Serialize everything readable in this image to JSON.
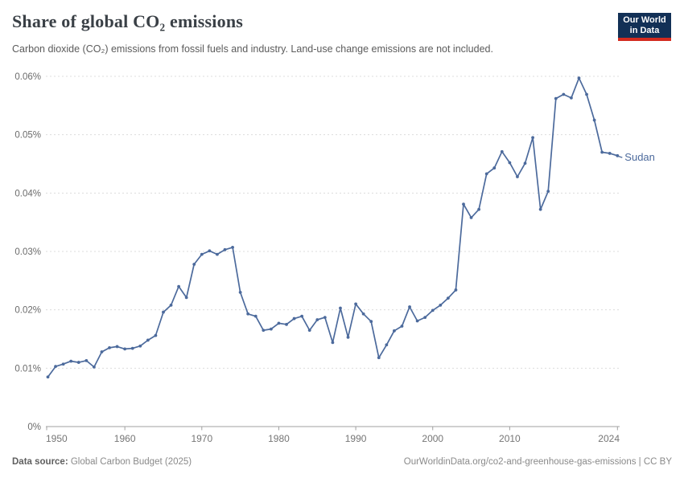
{
  "header": {
    "title": "Share of global CO₂ emissions",
    "subtitle": "Carbon dioxide (CO₂) emissions from fossil fuels and industry. Land-use change emissions are not included.",
    "logo_line1": "Our World",
    "logo_line2": "in Data"
  },
  "footer": {
    "source_label": "Data source:",
    "source_value": " Global Carbon Budget (2025)",
    "link": "OurWorldinData.org/co2-and-greenhouse-gas-emissions | CC BY"
  },
  "colors": {
    "line": "#4c6a9c",
    "entity_label": "#4c6a9c",
    "grid": "#dcdcdc",
    "axis": "#a0a0a0",
    "y_tick_text": "#6b6b6b",
    "x_tick_text": "#757575",
    "logo_bg": "#123056",
    "logo_bar": "#d32a1e"
  },
  "chart_data": {
    "type": "line",
    "title": "Share of global CO₂ emissions",
    "subtitle": "Carbon dioxide (CO₂) emissions from fossil fuels and industry. Land-use change emissions are not included.",
    "unit": "%",
    "ylim": [
      0,
      0.06
    ],
    "grid": "horizontal-dashed",
    "legend_position": "line-end-label",
    "yticks": [
      {
        "value": 0,
        "label": "0%"
      },
      {
        "value": 0.01,
        "label": "0.01%"
      },
      {
        "value": 0.02,
        "label": "0.02%"
      },
      {
        "value": 0.03,
        "label": "0.03%"
      },
      {
        "value": 0.04,
        "label": "0.04%"
      },
      {
        "value": 0.05,
        "label": "0.05%"
      },
      {
        "value": 0.06,
        "label": "0.06%"
      }
    ],
    "xticks": [
      {
        "year": 1950,
        "label": "1950",
        "align": "start"
      },
      {
        "year": 1960,
        "label": "1960",
        "align": "middle"
      },
      {
        "year": 1970,
        "label": "1970",
        "align": "middle"
      },
      {
        "year": 1980,
        "label": "1980",
        "align": "middle"
      },
      {
        "year": 1990,
        "label": "1990",
        "align": "middle"
      },
      {
        "year": 2000,
        "label": "2000",
        "align": "middle"
      },
      {
        "year": 2010,
        "label": "2010",
        "align": "middle"
      },
      {
        "year": 2024,
        "label": "2024",
        "align": "end"
      }
    ],
    "series": [
      {
        "name": "Sudan",
        "color": "#4c6a9c",
        "x": [
          1950,
          1951,
          1952,
          1953,
          1954,
          1955,
          1956,
          1957,
          1958,
          1959,
          1960,
          1961,
          1962,
          1963,
          1964,
          1965,
          1966,
          1967,
          1968,
          1969,
          1970,
          1971,
          1972,
          1973,
          1974,
          1975,
          1976,
          1977,
          1978,
          1979,
          1980,
          1981,
          1982,
          1983,
          1984,
          1985,
          1986,
          1987,
          1988,
          1989,
          1990,
          1991,
          1992,
          1993,
          1994,
          1995,
          1996,
          1997,
          1998,
          1999,
          2000,
          2001,
          2002,
          2003,
          2004,
          2005,
          2006,
          2007,
          2008,
          2009,
          2010,
          2011,
          2012,
          2013,
          2014,
          2015,
          2016,
          2017,
          2018,
          2019,
          2020,
          2021,
          2022,
          2023,
          2024
        ],
        "values": [
          0.0085,
          0.0103,
          0.0107,
          0.0112,
          0.011,
          0.0113,
          0.0102,
          0.0128,
          0.0135,
          0.0137,
          0.0133,
          0.0134,
          0.0138,
          0.0148,
          0.0156,
          0.0196,
          0.0208,
          0.024,
          0.0221,
          0.0278,
          0.0295,
          0.0301,
          0.0295,
          0.0303,
          0.0307,
          0.023,
          0.0193,
          0.0189,
          0.0165,
          0.0167,
          0.0177,
          0.0175,
          0.0185,
          0.0189,
          0.0165,
          0.0183,
          0.0187,
          0.0144,
          0.0203,
          0.0153,
          0.021,
          0.0193,
          0.018,
          0.0118,
          0.014,
          0.0164,
          0.0172,
          0.0205,
          0.0181,
          0.0187,
          0.0199,
          0.0208,
          0.022,
          0.0234,
          0.0381,
          0.0358,
          0.0372,
          0.0433,
          0.0443,
          0.0471,
          0.0452,
          0.0428,
          0.0451,
          0.0495,
          0.0372,
          0.0403,
          0.0562,
          0.0569,
          0.0563,
          0.0597,
          0.0569,
          0.0525,
          0.047,
          0.0468,
          0.0464
        ]
      }
    ]
  }
}
